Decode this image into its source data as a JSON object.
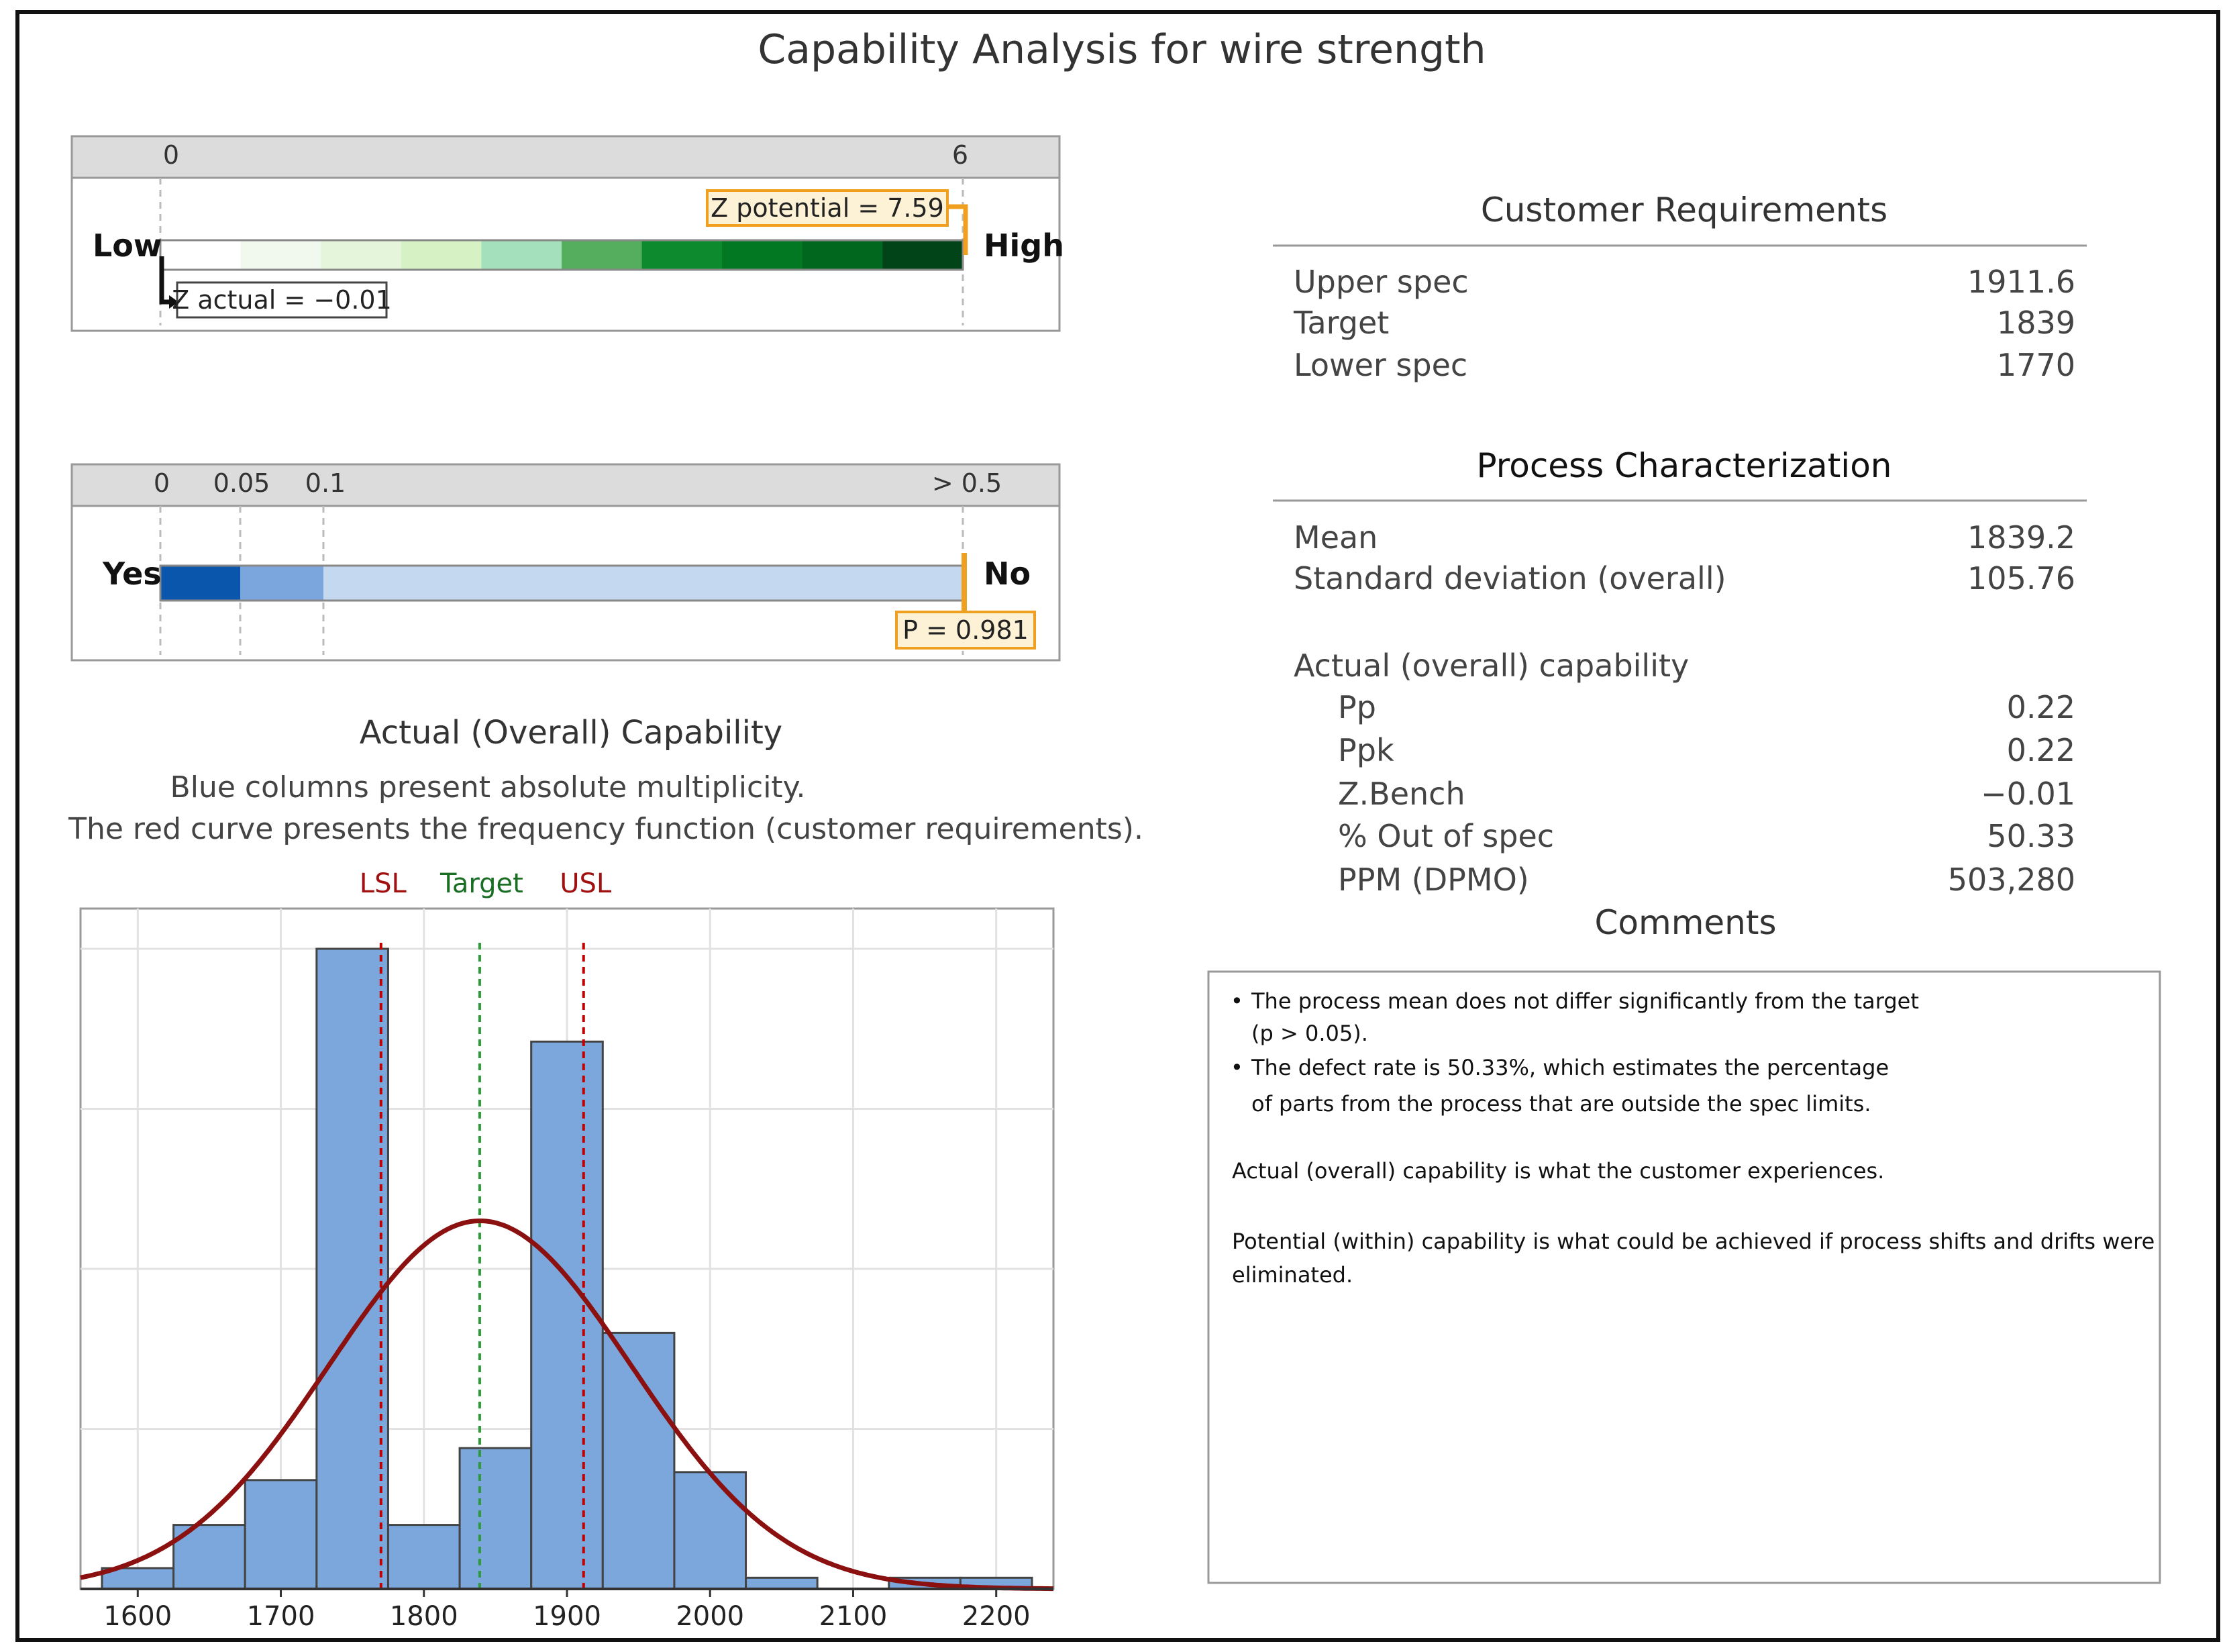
{
  "title": "Capability Analysis for wire strength",
  "z_gauge": {
    "scale_labels": [
      "0",
      "6"
    ],
    "scale_values": [
      0,
      6
    ],
    "low_label": "Low",
    "high_label": "High",
    "z_potential_label": "Z potential = 7.59",
    "z_actual_label": "Z actual = −0.01",
    "z_potential": 7.59,
    "z_actual": -0.01,
    "band_colors": [
      "#ffffff",
      "#f1f8ee",
      "#e4f5dc",
      "#d6f2c4",
      "#a5e0bd",
      "#55ad5e",
      "#0c8a2d",
      "#037823",
      "#01661e",
      "#014418"
    ]
  },
  "p_gauge": {
    "scale_labels": [
      "0",
      "0.05",
      "0.1",
      "> 0.5"
    ],
    "scale_values": [
      0,
      0.05,
      0.1,
      0.5
    ],
    "yes_label": "Yes",
    "no_label": "No",
    "p_label": "P = 0.981",
    "p_value": 0.981,
    "band_colors": [
      "#0b56ad",
      "#7aa5dd",
      "#c4d8f0"
    ]
  },
  "histogram_header": {
    "title": "Actual (Overall) Capability",
    "subtitle_1": "Blue columns present absolute multiplicity.",
    "subtitle_2": "The red curve presents the frequency function (customer requirements)."
  },
  "chart_data": {
    "type": "bar",
    "x": [
      1600,
      1700,
      1800,
      1900,
      2000,
      2100,
      2200
    ],
    "x_tick_labels": [
      "1600",
      "1700",
      "1800",
      "1900",
      "2000",
      "2100",
      "2200"
    ],
    "xlim": [
      1560,
      2240
    ],
    "bins": [
      {
        "from": 1575,
        "to": 1625,
        "height": 1.3
      },
      {
        "from": 1625,
        "to": 1675,
        "height": 4.0
      },
      {
        "from": 1675,
        "to": 1725,
        "height": 6.8
      },
      {
        "from": 1725,
        "to": 1775,
        "height": 40.0
      },
      {
        "from": 1775,
        "to": 1825,
        "height": 4.0
      },
      {
        "from": 1825,
        "to": 1875,
        "height": 8.8
      },
      {
        "from": 1875,
        "to": 1925,
        "height": 34.2
      },
      {
        "from": 1925,
        "to": 1975,
        "height": 16.0
      },
      {
        "from": 1975,
        "to": 2025,
        "height": 7.3
      },
      {
        "from": 2025,
        "to": 2075,
        "height": 0.7
      },
      {
        "from": 2075,
        "to": 2125,
        "height": 0.0
      },
      {
        "from": 2125,
        "to": 2175,
        "height": 0.7
      },
      {
        "from": 2175,
        "to": 2225,
        "height": 0.7
      }
    ],
    "ylim": [
      0,
      40
    ],
    "y_grid": [
      10,
      20,
      30,
      40
    ],
    "curve": {
      "mean": 1839.2,
      "sd": 105.76,
      "peak": 23.0,
      "color": "#8b1010"
    },
    "ref_lines": [
      {
        "label": "LSL",
        "value": 1770,
        "color": "#c00000",
        "label_color": "#a01010"
      },
      {
        "label": "Target",
        "value": 1839,
        "color": "#2e9a3a",
        "label_color": "#1a6e24"
      },
      {
        "label": "USL",
        "value": 1911.6,
        "color": "#c00000",
        "label_color": "#a01010"
      }
    ],
    "bar_color": "#7ba7dc",
    "grid": true
  },
  "customer_requirements": {
    "heading": "Customer Requirements",
    "rows": [
      {
        "label": "Upper spec",
        "value": "1911.6"
      },
      {
        "label": "Target",
        "value": "1839"
      },
      {
        "label": "Lower spec",
        "value": "1770"
      }
    ]
  },
  "process_characterization": {
    "heading": "Process Characterization",
    "rows": [
      {
        "label": "Mean",
        "value": "1839.2"
      },
      {
        "label": "Standard deviation (overall)",
        "value": "105.76"
      }
    ],
    "capability_heading": "Actual (overall) capability",
    "capability_rows": [
      {
        "label": "Pp",
        "value": "0.22"
      },
      {
        "label": "Ppk",
        "value": "0.22"
      },
      {
        "label": "Z.Bench",
        "value": "−0.01"
      },
      {
        "label": "% Out of spec",
        "value": "50.33"
      },
      {
        "label": "PPM (DPMO)",
        "value": "503,280"
      }
    ]
  },
  "comments": {
    "heading": "Comments",
    "bullet_1_line_1": "The process mean does not differ significantly from the target",
    "bullet_1_line_2": "(p > 0.05).",
    "bullet_2_line_1": "The defect rate is 50.33%, which estimates the percentage",
    "bullet_2_line_2": "of parts from the process that are outside the spec limits.",
    "para_1": "Actual (overall) capability is what the customer experiences.",
    "para_2_line_1": "Potential (within) capability is what could be achieved if process shifts and drifts were",
    "para_2_line_2": "eliminated."
  }
}
